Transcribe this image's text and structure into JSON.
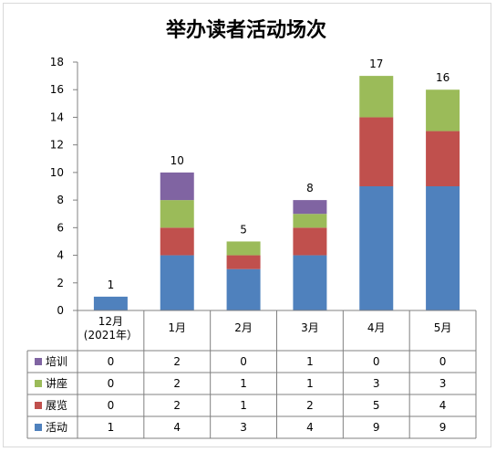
{
  "chart_data": {
    "type": "bar",
    "stacked": true,
    "title": "举办读者活动场次",
    "categories": [
      "12月\n(2021年）",
      "1月",
      "2月",
      "3月",
      "4月",
      "5月"
    ],
    "ylim": [
      0,
      18
    ],
    "yticks": [
      0,
      2,
      4,
      6,
      8,
      10,
      12,
      14,
      16,
      18
    ],
    "totals": [
      1,
      10,
      5,
      8,
      17,
      16
    ],
    "series": [
      {
        "name": "活动",
        "color": "#4f81bd",
        "values": [
          1,
          4,
          3,
          4,
          9,
          9
        ]
      },
      {
        "name": "展览",
        "color": "#c0504d",
        "values": [
          0,
          2,
          1,
          2,
          5,
          4
        ]
      },
      {
        "name": "讲座",
        "color": "#9bbb59",
        "values": [
          0,
          2,
          1,
          1,
          3,
          3
        ]
      },
      {
        "name": "培训",
        "color": "#8064a2",
        "values": [
          0,
          2,
          0,
          1,
          0,
          0
        ]
      }
    ],
    "legend": "data-table",
    "grid": false
  }
}
